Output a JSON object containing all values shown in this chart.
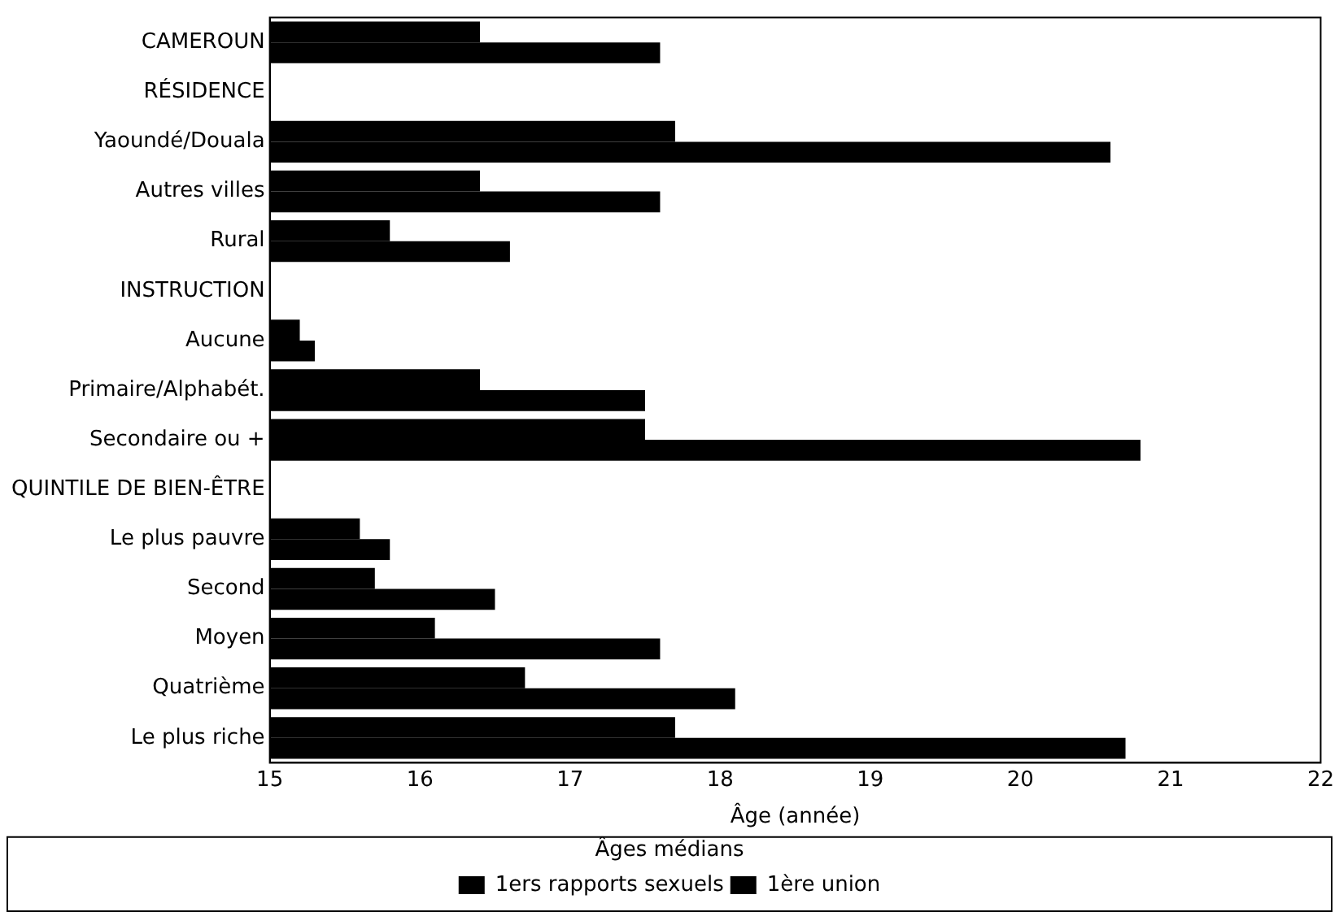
{
  "chart_data": {
    "type": "bar",
    "orientation": "horizontal",
    "xlabel": "Âge (année)",
    "legend_title": "Âges médians",
    "legend": "bottom",
    "grid": false,
    "categories": [
      "CAMEROUN",
      "RÉSIDENCE",
      "Yaoundé/Douala",
      "Autres villes",
      "Rural",
      "INSTRUCTION",
      "Aucune",
      "Primaire/Alphabét.",
      "Secondaire ou +",
      "QUINTILE DE BIEN-ÊTRE",
      "Le plus pauvre",
      "Second",
      "Moyen",
      "Quatrième",
      "Le plus riche"
    ],
    "series": [
      {
        "name": "1ers rapports sexuels",
        "color": "#000000",
        "values": [
          16.4,
          null,
          17.7,
          16.4,
          15.8,
          null,
          15.2,
          16.4,
          17.5,
          null,
          15.6,
          15.7,
          16.1,
          16.7,
          17.7
        ]
      },
      {
        "name": "1ère union",
        "color": "#000000",
        "values": [
          17.6,
          null,
          20.6,
          17.6,
          16.6,
          null,
          15.3,
          17.5,
          20.8,
          null,
          15.8,
          16.5,
          17.6,
          18.1,
          20.7
        ]
      }
    ],
    "xlim": [
      15,
      22
    ],
    "xticks": [
      15,
      16,
      17,
      18,
      19,
      20,
      21,
      22
    ]
  }
}
